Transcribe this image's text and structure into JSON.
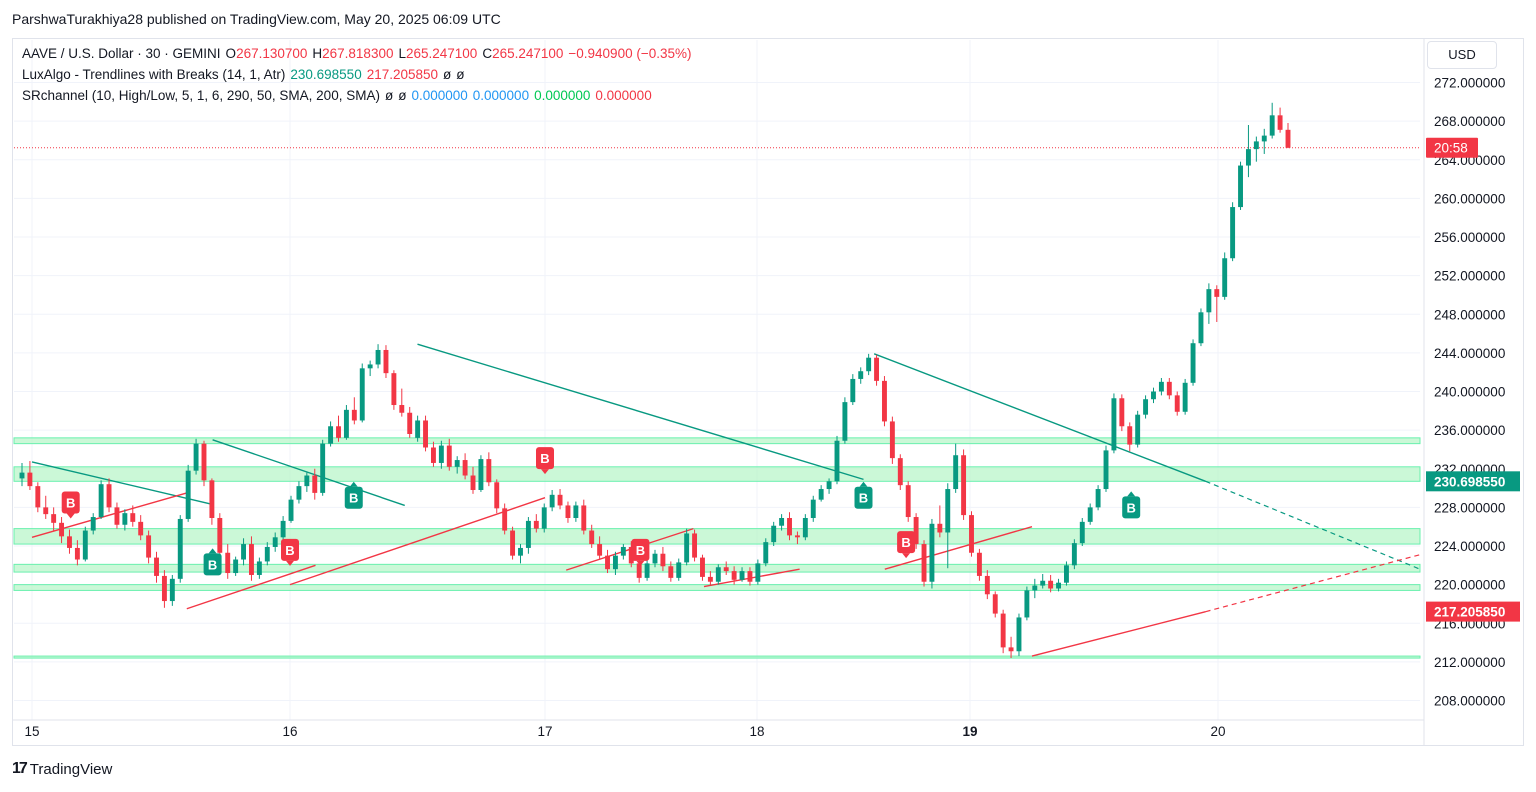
{
  "header": {
    "publisher_line": "ParshwaTurakhiya28 published on TradingView.com, May 20, 2025 06:09 UTC"
  },
  "legend": {
    "symbol": "AAVE / U.S. Dollar · 30 · GEMINI",
    "open_label": "O",
    "open": "267.130700",
    "high_label": "H",
    "high": "267.818300",
    "low_label": "L",
    "low": "265.247100",
    "close_label": "C",
    "close": "265.247100",
    "change": "−0.940900 (−0.35%)",
    "indicator1_name": "LuxAlgo - Trendlines with Breaks (14, 1, Atr)",
    "indicator1_v1": "230.698550",
    "indicator1_v2": "217.205850",
    "indicator1_na1": "ø",
    "indicator1_na2": "ø",
    "indicator2_name": "SRchannel (10, High/Low, 5, 1, 6, 290, 50, SMA, 200, SMA)",
    "indicator2_na1": "ø",
    "indicator2_na2": "ø",
    "indicator2_v1": "0.000000",
    "indicator2_v2": "0.000000",
    "indicator2_v3": "0.000000",
    "indicator2_v4": "0.000000"
  },
  "price_axis": {
    "currency": "USD",
    "ticks": [
      "272.000000",
      "268.000000",
      "264.000000",
      "260.000000",
      "256.000000",
      "252.000000",
      "248.000000",
      "244.000000",
      "240.000000",
      "236.000000",
      "232.000000",
      "228.000000",
      "224.000000",
      "220.000000",
      "216.000000",
      "212.000000",
      "208.000000"
    ],
    "countdown_label": "20:58",
    "upper_trend_label": "230.698550",
    "lower_trend_label": "217.205850"
  },
  "time_axis": {
    "ticks": [
      "15",
      "16",
      "17",
      "18",
      "19",
      "20"
    ]
  },
  "footer": {
    "logo_mark": "17",
    "brand": "TradingView"
  },
  "colors": {
    "up": "#089981",
    "down": "#f23645",
    "channel_fill": "#b9f6ca",
    "channel_border": "#69f0ae",
    "resistance_line": "#089981",
    "support_line": "#f23645"
  },
  "chart_data": {
    "type": "candlestick",
    "symbol": "AAVE / U.S. Dollar",
    "interval": "30",
    "exchange": "GEMINI",
    "ylim": [
      207,
      274
    ],
    "x_day_labels": [
      "15",
      "16",
      "17",
      "18",
      "19",
      "20"
    ],
    "current_price": 265.247,
    "sr_channels": [
      {
        "low": 234.6,
        "high": 235.2
      },
      {
        "low": 230.7,
        "high": 232.2
      },
      {
        "low": 224.2,
        "high": 225.8
      },
      {
        "low": 221.3,
        "high": 222.1
      },
      {
        "low": 219.4,
        "high": 220.0
      },
      {
        "low": 212.4,
        "high": 212.6
      }
    ],
    "resistance_lines": [
      {
        "from": [
          "15",
          234.6
        ],
        "to": [
          "15",
          234.6
        ]
      },
      {
        "from": [
          "15",
          232.7
        ],
        "to": [
          "15.7",
          228.3
        ]
      },
      {
        "from": [
          "15.7",
          235.0
        ],
        "to": [
          "16.45",
          228.2
        ]
      },
      {
        "from": [
          "16.5",
          244.9
        ],
        "to": [
          "18.5",
          230.9
        ]
      },
      {
        "from": [
          "18.55",
          243.9
        ],
        "to": [
          "19.95",
          230.7
        ]
      }
    ],
    "support_lines": [
      {
        "from": [
          "15",
          224.9
        ],
        "to": [
          "15.6",
          229.5
        ]
      },
      {
        "from": [
          "15.6",
          217.5
        ],
        "to": [
          "16.1",
          222.0
        ]
      },
      {
        "from": [
          "16",
          220.0
        ],
        "to": [
          "17",
          229.0
        ]
      },
      {
        "from": [
          "17.1",
          221.5
        ],
        "to": [
          "17.7",
          225.8
        ]
      },
      {
        "from": [
          "17.75",
          219.8
        ],
        "to": [
          "18.2",
          221.6
        ]
      },
      {
        "from": [
          "18.6",
          221.6
        ],
        "to": [
          "19.25",
          226.0
        ]
      },
      {
        "from": [
          "19.25",
          212.6
        ],
        "to": [
          "19.95",
          217.2
        ]
      }
    ],
    "signals": [
      {
        "type": "B",
        "kind": "sell",
        "day": "15.15",
        "price": 228.5
      },
      {
        "type": "B",
        "kind": "buy",
        "day": "15.7",
        "price": 222.1
      },
      {
        "type": "B",
        "kind": "sell",
        "day": "16",
        "price": 223.6
      },
      {
        "type": "B",
        "kind": "buy",
        "day": "16.25",
        "price": 229.0
      },
      {
        "type": "B",
        "kind": "sell",
        "day": "17",
        "price": 233.1
      },
      {
        "type": "B",
        "kind": "sell",
        "day": "17.45",
        "price": 223.6
      },
      {
        "type": "B",
        "kind": "buy",
        "day": "18.5",
        "price": 229.0
      },
      {
        "type": "B",
        "kind": "sell",
        "day": "18.7",
        "price": 224.4
      },
      {
        "type": "B",
        "kind": "buy",
        "day": "19.65",
        "price": 228.0
      }
    ],
    "candles": [
      [
        231.0,
        232.6,
        230.2,
        231.6
      ],
      [
        231.6,
        232.8,
        229.8,
        230.2
      ],
      [
        230.2,
        230.6,
        227.5,
        228.0
      ],
      [
        228.0,
        229.2,
        226.8,
        227.3
      ],
      [
        227.3,
        228.0,
        225.6,
        226.4
      ],
      [
        226.4,
        227.0,
        224.3,
        225.0
      ],
      [
        225.0,
        225.7,
        223.2,
        223.8
      ],
      [
        223.8,
        224.6,
        222.0,
        222.6
      ],
      [
        222.6,
        226.0,
        222.4,
        225.6
      ],
      [
        225.6,
        227.4,
        225.2,
        227.0
      ],
      [
        227.0,
        230.8,
        226.8,
        230.4
      ],
      [
        230.4,
        231.0,
        227.5,
        228.0
      ],
      [
        228.0,
        228.5,
        225.8,
        226.2
      ],
      [
        226.2,
        227.8,
        225.6,
        227.4
      ],
      [
        227.4,
        228.2,
        226.0,
        226.5
      ],
      [
        226.5,
        227.2,
        224.6,
        225.1
      ],
      [
        225.1,
        225.6,
        222.2,
        222.8
      ],
      [
        222.8,
        223.4,
        220.2,
        220.9
      ],
      [
        220.9,
        221.5,
        217.6,
        218.3
      ],
      [
        218.3,
        221.0,
        217.8,
        220.6
      ],
      [
        220.6,
        227.2,
        220.2,
        226.8
      ],
      [
        226.8,
        232.4,
        226.5,
        231.8
      ],
      [
        231.8,
        235.1,
        231.4,
        234.6
      ],
      [
        234.6,
        234.9,
        230.2,
        230.8
      ],
      [
        230.8,
        231.0,
        226.2,
        226.9
      ],
      [
        226.9,
        227.4,
        222.8,
        223.3
      ],
      [
        223.3,
        224.2,
        220.6,
        221.2
      ],
      [
        221.2,
        222.9,
        220.9,
        222.6
      ],
      [
        222.6,
        224.8,
        222.0,
        224.2
      ],
      [
        224.2,
        225.0,
        220.4,
        221.0
      ],
      [
        221.0,
        222.8,
        220.6,
        222.4
      ],
      [
        222.4,
        224.4,
        222.0,
        223.9
      ],
      [
        223.9,
        225.4,
        223.4,
        224.9
      ],
      [
        224.9,
        227.1,
        224.7,
        226.6
      ],
      [
        226.6,
        229.2,
        226.4,
        228.8
      ],
      [
        228.8,
        230.7,
        228.4,
        230.2
      ],
      [
        230.2,
        231.6,
        229.6,
        231.3
      ],
      [
        231.3,
        232.0,
        228.8,
        229.5
      ],
      [
        229.5,
        235.0,
        229.2,
        234.6
      ],
      [
        234.6,
        236.9,
        234.3,
        236.4
      ],
      [
        236.4,
        237.5,
        234.8,
        235.2
      ],
      [
        235.2,
        238.6,
        235.0,
        238.1
      ],
      [
        238.1,
        239.4,
        236.6,
        237.0
      ],
      [
        237.0,
        242.9,
        236.8,
        242.4
      ],
      [
        242.4,
        243.2,
        241.6,
        242.8
      ],
      [
        242.8,
        244.9,
        242.4,
        244.3
      ],
      [
        244.3,
        244.8,
        241.4,
        241.9
      ],
      [
        241.9,
        242.2,
        238.1,
        238.6
      ],
      [
        238.6,
        240.3,
        237.4,
        237.8
      ],
      [
        237.8,
        238.4,
        235.2,
        235.6
      ],
      [
        235.2,
        237.5,
        234.8,
        237.0
      ],
      [
        237.0,
        237.5,
        233.8,
        234.2
      ],
      [
        234.2,
        234.8,
        232.2,
        232.6
      ],
      [
        232.6,
        234.9,
        232.0,
        234.4
      ],
      [
        234.4,
        235.1,
        231.8,
        232.2
      ],
      [
        232.2,
        233.3,
        231.5,
        232.9
      ],
      [
        232.9,
        233.6,
        230.9,
        231.3
      ],
      [
        231.3,
        232.2,
        229.4,
        229.8
      ],
      [
        229.8,
        233.4,
        229.6,
        233.0
      ],
      [
        233.0,
        233.7,
        230.2,
        230.6
      ],
      [
        230.6,
        230.9,
        227.4,
        227.9
      ],
      [
        227.9,
        228.4,
        225.2,
        225.6
      ],
      [
        225.6,
        226.0,
        222.6,
        223.0
      ],
      [
        223.0,
        224.2,
        222.2,
        223.8
      ],
      [
        223.8,
        227.0,
        223.2,
        226.6
      ],
      [
        226.6,
        227.3,
        225.4,
        225.8
      ],
      [
        225.8,
        228.4,
        225.4,
        228.0
      ],
      [
        228.0,
        229.8,
        227.6,
        229.3
      ],
      [
        229.3,
        229.9,
        227.8,
        228.2
      ],
      [
        228.2,
        228.6,
        226.4,
        226.9
      ],
      [
        226.9,
        228.6,
        226.5,
        228.2
      ],
      [
        228.2,
        228.8,
        225.2,
        225.6
      ],
      [
        225.6,
        226.2,
        223.8,
        224.2
      ],
      [
        224.2,
        225.0,
        222.6,
        223.0
      ],
      [
        223.0,
        223.6,
        221.2,
        221.6
      ],
      [
        221.6,
        223.4,
        221.0,
        223.0
      ],
      [
        223.0,
        224.2,
        222.6,
        223.9
      ],
      [
        223.9,
        224.5,
        221.8,
        222.2
      ],
      [
        222.2,
        222.6,
        220.2,
        220.7
      ],
      [
        220.7,
        222.6,
        220.4,
        222.2
      ],
      [
        222.2,
        223.6,
        221.8,
        223.2
      ],
      [
        223.2,
        223.9,
        221.4,
        221.9
      ],
      [
        221.9,
        222.4,
        220.3,
        220.7
      ],
      [
        220.7,
        222.7,
        220.4,
        222.3
      ],
      [
        222.3,
        225.8,
        222.0,
        225.3
      ],
      [
        225.3,
        225.7,
        222.4,
        222.8
      ],
      [
        222.8,
        223.1,
        220.4,
        220.8
      ],
      [
        220.8,
        221.4,
        219.9,
        220.3
      ],
      [
        220.3,
        222.1,
        220.0,
        221.8
      ],
      [
        221.8,
        222.4,
        221.0,
        221.4
      ],
      [
        221.4,
        221.9,
        220.0,
        220.5
      ],
      [
        220.5,
        221.8,
        220.3,
        221.4
      ],
      [
        221.4,
        221.8,
        219.9,
        220.3
      ],
      [
        220.3,
        222.6,
        220.0,
        222.2
      ],
      [
        222.2,
        224.8,
        221.9,
        224.4
      ],
      [
        224.4,
        226.5,
        224.0,
        226.1
      ],
      [
        226.1,
        227.3,
        225.6,
        226.9
      ],
      [
        226.9,
        227.5,
        224.6,
        225.1
      ],
      [
        225.1,
        225.5,
        224.2,
        224.9
      ],
      [
        224.9,
        227.3,
        224.6,
        226.9
      ],
      [
        226.9,
        229.2,
        226.5,
        228.8
      ],
      [
        228.8,
        230.3,
        228.6,
        229.9
      ],
      [
        229.9,
        231.0,
        229.4,
        230.7
      ],
      [
        230.7,
        235.4,
        230.4,
        234.9
      ],
      [
        234.9,
        239.4,
        234.6,
        238.9
      ],
      [
        238.9,
        241.8,
        238.6,
        241.3
      ],
      [
        241.3,
        242.5,
        240.8,
        242.1
      ],
      [
        242.1,
        243.9,
        241.7,
        243.5
      ],
      [
        243.5,
        243.8,
        240.6,
        241.1
      ],
      [
        241.1,
        241.6,
        236.4,
        236.9
      ],
      [
        236.9,
        237.4,
        232.5,
        233.1
      ],
      [
        233.1,
        233.5,
        229.8,
        230.3
      ],
      [
        230.3,
        230.7,
        226.5,
        227.0
      ],
      [
        227.0,
        227.4,
        223.7,
        224.2
      ],
      [
        224.2,
        224.6,
        219.8,
        220.3
      ],
      [
        220.3,
        226.8,
        219.6,
        226.3
      ],
      [
        226.3,
        228.2,
        224.9,
        225.4
      ],
      [
        225.4,
        230.5,
        221.7,
        229.9
      ],
      [
        229.9,
        234.6,
        229.5,
        233.4
      ],
      [
        233.4,
        234.0,
        226.7,
        227.2
      ],
      [
        227.2,
        227.6,
        222.9,
        223.3
      ],
      [
        223.3,
        223.7,
        220.4,
        220.9
      ],
      [
        220.9,
        221.5,
        218.5,
        219.0
      ],
      [
        219.0,
        219.3,
        216.6,
        217.0
      ],
      [
        217.0,
        217.4,
        212.9,
        213.5
      ],
      [
        213.5,
        214.6,
        212.4,
        213.1
      ],
      [
        213.1,
        217.0,
        212.6,
        216.6
      ],
      [
        216.6,
        219.8,
        216.3,
        219.4
      ],
      [
        219.4,
        220.6,
        218.6,
        219.9
      ],
      [
        219.9,
        221.1,
        219.6,
        220.4
      ],
      [
        220.4,
        221.0,
        219.2,
        219.6
      ],
      [
        219.6,
        220.6,
        219.3,
        220.2
      ],
      [
        220.2,
        222.4,
        219.9,
        222.0
      ],
      [
        222.0,
        224.7,
        221.6,
        224.3
      ],
      [
        224.3,
        226.9,
        224.0,
        226.5
      ],
      [
        226.5,
        228.4,
        226.2,
        228.0
      ],
      [
        228.0,
        230.3,
        227.7,
        229.9
      ],
      [
        229.9,
        234.4,
        229.6,
        233.9
      ],
      [
        233.9,
        239.8,
        233.6,
        239.3
      ],
      [
        239.3,
        239.7,
        235.9,
        236.4
      ],
      [
        236.4,
        236.8,
        233.8,
        234.5
      ],
      [
        234.5,
        238.0,
        234.2,
        237.6
      ],
      [
        237.6,
        239.6,
        237.2,
        239.2
      ],
      [
        239.2,
        240.4,
        238.8,
        240.0
      ],
      [
        240.0,
        241.4,
        239.6,
        241.0
      ],
      [
        241.0,
        241.4,
        239.2,
        239.6
      ],
      [
        239.6,
        240.0,
        237.5,
        237.9
      ],
      [
        237.9,
        241.3,
        237.6,
        240.9
      ],
      [
        240.9,
        245.4,
        240.6,
        245.0
      ],
      [
        245.0,
        248.6,
        244.7,
        248.2
      ],
      [
        248.2,
        251.2,
        247.0,
        250.6
      ],
      [
        250.6,
        251.0,
        247.2,
        249.8
      ],
      [
        249.8,
        254.4,
        249.5,
        253.8
      ],
      [
        253.8,
        259.6,
        253.5,
        259.1
      ],
      [
        259.1,
        263.8,
        258.8,
        263.4
      ],
      [
        263.4,
        267.6,
        262.2,
        265.1
      ],
      [
        265.1,
        266.4,
        263.8,
        265.9
      ],
      [
        265.9,
        267.2,
        264.6,
        266.5
      ],
      [
        266.5,
        269.9,
        266.2,
        268.6
      ],
      [
        268.6,
        269.4,
        266.8,
        267.1
      ],
      [
        267.1,
        267.8,
        265.2,
        265.247
      ]
    ]
  }
}
